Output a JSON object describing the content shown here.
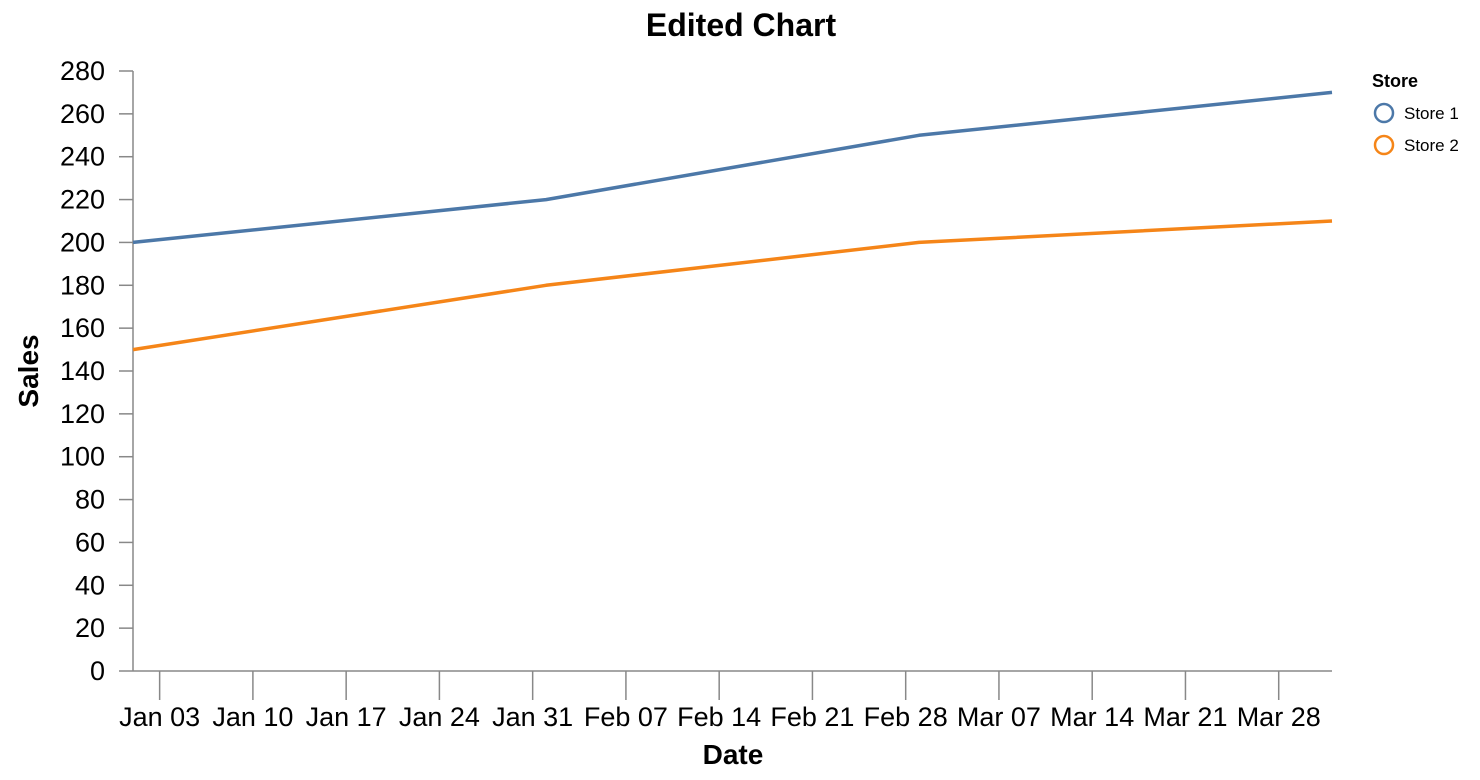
{
  "chart_data": {
    "type": "line",
    "title": "Edited Chart",
    "xlabel": "Date",
    "ylabel": "Sales",
    "x_ticks": [
      "Jan 03",
      "Jan 10",
      "Jan 17",
      "Jan 24",
      "Jan 31",
      "Feb 07",
      "Feb 14",
      "Feb 21",
      "Feb 28",
      "Mar 07",
      "Mar 14",
      "Mar 21",
      "Mar 28"
    ],
    "y_ticks": [
      "0",
      "20",
      "40",
      "60",
      "80",
      "100",
      "120",
      "140",
      "160",
      "180",
      "200",
      "220",
      "240",
      "260",
      "280"
    ],
    "ylim": [
      0,
      280
    ],
    "xlim": [
      "2023-01-01",
      "2023-04-01"
    ],
    "grid": false,
    "legend": {
      "title": "Store",
      "position": "right",
      "entries": [
        "Store 1",
        "Store 2"
      ]
    },
    "x": [
      "2023-01-01",
      "2023-02-01",
      "2023-03-01",
      "2023-04-01"
    ],
    "series": [
      {
        "name": "Store 1",
        "color": "#4c78a8",
        "values": [
          200,
          220,
          250,
          270
        ]
      },
      {
        "name": "Store 2",
        "color": "#f58518",
        "values": [
          150,
          180,
          200,
          210
        ]
      }
    ]
  }
}
